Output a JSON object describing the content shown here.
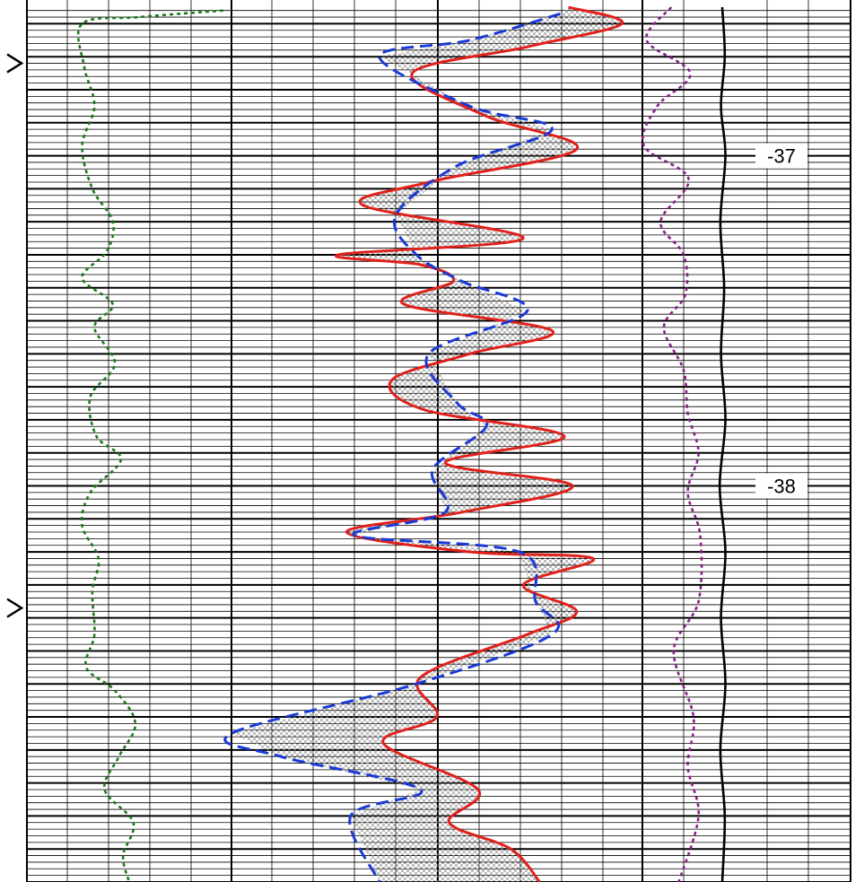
{
  "chart_data": {
    "type": "line",
    "y_axis": {
      "label": "",
      "ticks": [
        -37,
        -38
      ],
      "tick_labels": [
        "-37",
        "-38"
      ]
    },
    "tracks": [
      {
        "id": "gr",
        "series": [
          {
            "style": "dotted",
            "color": "#1a7a1a",
            "points": [
              [
                0.96,
                -36.56
              ],
              [
                0.55,
                -36.58
              ],
              [
                0.27,
                -36.6
              ],
              [
                0.28,
                -36.73
              ],
              [
                0.33,
                -36.85
              ],
              [
                0.27,
                -36.97
              ],
              [
                0.32,
                -37.1
              ],
              [
                0.42,
                -37.2
              ],
              [
                0.39,
                -37.29
              ],
              [
                0.27,
                -37.37
              ],
              [
                0.42,
                -37.45
              ],
              [
                0.33,
                -37.52
              ],
              [
                0.43,
                -37.63
              ],
              [
                0.31,
                -37.73
              ],
              [
                0.34,
                -37.85
              ],
              [
                0.46,
                -37.92
              ],
              [
                0.31,
                -38.02
              ],
              [
                0.27,
                -38.12
              ],
              [
                0.35,
                -38.22
              ],
              [
                0.32,
                -38.32
              ],
              [
                0.33,
                -38.45
              ],
              [
                0.29,
                -38.55
              ],
              [
                0.43,
                -38.62
              ],
              [
                0.53,
                -38.72
              ],
              [
                0.45,
                -38.82
              ],
              [
                0.38,
                -38.92
              ],
              [
                0.52,
                -39.02
              ],
              [
                0.47,
                -39.12
              ],
              [
                0.5,
                -39.2
              ]
            ]
          }
        ]
      },
      {
        "id": "res",
        "series": [
          {
            "name": "",
            "style": "solid",
            "color": "#e0211c",
            "points": [
              [
                0.82,
                -36.55
              ],
              [
                0.95,
                -36.6
              ],
              [
                0.72,
                -36.67
              ],
              [
                0.44,
                -36.75
              ],
              [
                0.62,
                -36.88
              ],
              [
                0.84,
                -36.98
              ],
              [
                0.48,
                -37.08
              ],
              [
                0.32,
                -37.15
              ],
              [
                0.71,
                -37.25
              ],
              [
                0.26,
                -37.3
              ],
              [
                0.46,
                -37.33
              ],
              [
                0.54,
                -37.38
              ],
              [
                0.42,
                -37.45
              ],
              [
                0.78,
                -37.53
              ],
              [
                0.58,
                -37.6
              ],
              [
                0.39,
                -37.68
              ],
              [
                0.47,
                -37.77
              ],
              [
                0.81,
                -37.85
              ],
              [
                0.52,
                -37.93
              ],
              [
                0.83,
                -38.0
              ],
              [
                0.56,
                -38.08
              ],
              [
                0.28,
                -38.14
              ],
              [
                0.58,
                -38.2
              ],
              [
                0.88,
                -38.22
              ],
              [
                0.71,
                -38.3
              ],
              [
                0.84,
                -38.38
              ],
              [
                0.72,
                -38.45
              ],
              [
                0.46,
                -38.58
              ],
              [
                0.5,
                -38.7
              ],
              [
                0.37,
                -38.78
              ],
              [
                0.6,
                -38.92
              ],
              [
                0.53,
                -39.02
              ],
              [
                0.68,
                -39.1
              ],
              [
                0.75,
                -39.2
              ]
            ]
          },
          {
            "name": "",
            "style": "dashed",
            "color": "#1a3ad6",
            "points": [
              [
                0.8,
                -36.57
              ],
              [
                0.58,
                -36.65
              ],
              [
                0.36,
                -36.7
              ],
              [
                0.58,
                -36.85
              ],
              [
                0.78,
                -36.92
              ],
              [
                0.55,
                -37.03
              ],
              [
                0.4,
                -37.18
              ],
              [
                0.45,
                -37.3
              ],
              [
                0.56,
                -37.38
              ],
              [
                0.72,
                -37.47
              ],
              [
                0.48,
                -37.6
              ],
              [
                0.55,
                -37.75
              ],
              [
                0.62,
                -37.82
              ],
              [
                0.49,
                -37.95
              ],
              [
                0.52,
                -38.08
              ],
              [
                0.3,
                -38.15
              ],
              [
                0.7,
                -38.2
              ],
              [
                0.74,
                -38.35
              ],
              [
                0.78,
                -38.45
              ],
              [
                0.45,
                -38.6
              ],
              [
                0.0,
                -38.75
              ],
              [
                0.12,
                -38.82
              ],
              [
                0.46,
                -38.92
              ],
              [
                0.29,
                -39.0
              ],
              [
                0.36,
                -39.2
              ]
            ]
          }
        ]
      },
      {
        "id": "dt",
        "series": [
          {
            "style": "dotted",
            "color": "#8a1f8a",
            "points": [
              [
                0.35,
                -36.55
              ],
              [
                0.05,
                -36.65
              ],
              [
                0.58,
                -36.75
              ],
              [
                0.18,
                -36.85
              ],
              [
                0.02,
                -36.97
              ],
              [
                0.56,
                -37.07
              ],
              [
                0.22,
                -37.2
              ],
              [
                0.5,
                -37.3
              ],
              [
                0.52,
                -37.42
              ],
              [
                0.26,
                -37.52
              ],
              [
                0.5,
                -37.65
              ],
              [
                0.55,
                -37.78
              ],
              [
                0.68,
                -37.9
              ],
              [
                0.55,
                -38.02
              ],
              [
                0.7,
                -38.15
              ],
              [
                0.68,
                -38.35
              ],
              [
                0.38,
                -38.5
              ],
              [
                0.62,
                -38.7
              ],
              [
                0.55,
                -38.85
              ],
              [
                0.68,
                -39.0
              ],
              [
                0.44,
                -39.2
              ]
            ]
          }
        ]
      },
      {
        "id": "cal",
        "series": [
          {
            "style": "solid",
            "color": "#000000",
            "points": [
              [
                0.5,
                -36.55
              ],
              [
                0.54,
                -36.7
              ],
              [
                0.48,
                -36.85
              ],
              [
                0.55,
                -37.0
              ],
              [
                0.47,
                -37.2
              ],
              [
                0.53,
                -37.4
              ],
              [
                0.48,
                -37.6
              ],
              [
                0.55,
                -37.8
              ],
              [
                0.46,
                -38.0
              ],
              [
                0.55,
                -38.2
              ],
              [
                0.48,
                -38.4
              ],
              [
                0.55,
                -38.6
              ],
              [
                0.47,
                -38.8
              ],
              [
                0.54,
                -39.0
              ],
              [
                0.5,
                -39.2
              ]
            ]
          }
        ]
      }
    ]
  }
}
